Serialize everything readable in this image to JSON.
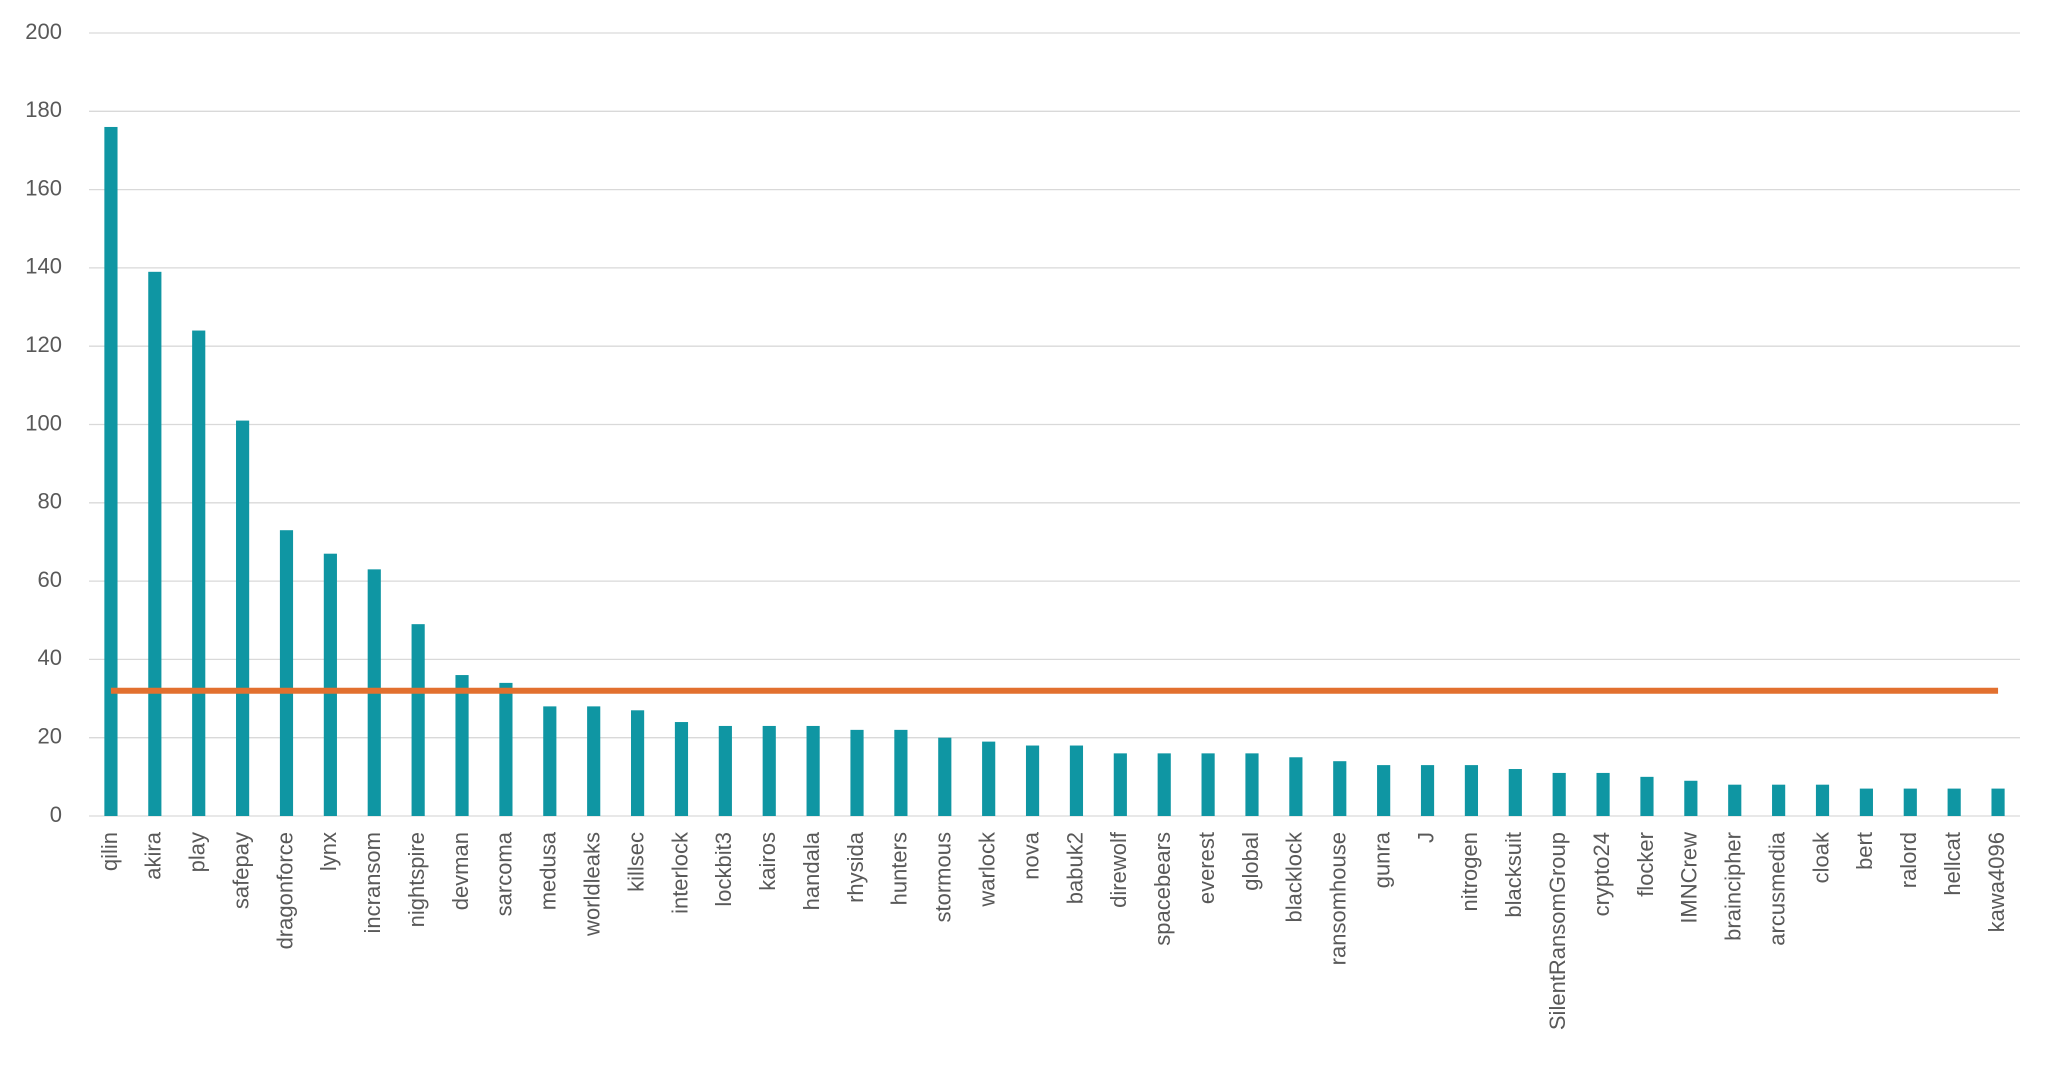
{
  "chart_data": {
    "type": "bar",
    "categories": [
      "qilin",
      "akira",
      "play",
      "safepay",
      "dragonforce",
      "lynx",
      "incransom",
      "nightspire",
      "devman",
      "sarcoma",
      "medusa",
      "worldleaks",
      "killsec",
      "interlock",
      "lockbit3",
      "kairos",
      "handala",
      "rhysida",
      "hunters",
      "stormous",
      "warlock",
      "nova",
      "babuk2",
      "direwolf",
      "spacebears",
      "everest",
      "global",
      "blacklock",
      "ransomhouse",
      "gunra",
      "J",
      "nitrogen",
      "blacksuit",
      "SilentRansomGroup",
      "crypto24",
      "flocker",
      "IMNCrew",
      "braincipher",
      "arcusmedia",
      "cloak",
      "bert",
      "ralord",
      "hellcat",
      "kawa4096"
    ],
    "series": [
      {
        "type": "bar",
        "color": "#0f96a3",
        "values": [
          176,
          139,
          124,
          101,
          73,
          67,
          63,
          49,
          36,
          34,
          28,
          28,
          27,
          24,
          23,
          23,
          23,
          22,
          22,
          20,
          19,
          18,
          18,
          16,
          16,
          16,
          16,
          15,
          14,
          13,
          13,
          13,
          12,
          11,
          11,
          10,
          9,
          8,
          8,
          8,
          7,
          7,
          7,
          7
        ]
      },
      {
        "type": "line",
        "color": "#e2702f",
        "values": [
          32,
          32,
          32,
          32,
          32,
          32,
          32,
          32,
          32,
          32,
          32,
          32,
          32,
          32,
          32,
          32,
          32,
          32,
          32,
          32,
          32,
          32,
          32,
          32,
          32,
          32,
          32,
          32,
          32,
          32,
          32,
          32,
          32,
          32,
          32,
          32,
          32,
          32,
          32,
          32,
          32,
          32,
          32,
          32
        ]
      }
    ],
    "ylim": [
      0,
      200
    ],
    "yticks": [
      0,
      20,
      40,
      60,
      80,
      100,
      120,
      140,
      160,
      180,
      200
    ],
    "grid": true
  }
}
